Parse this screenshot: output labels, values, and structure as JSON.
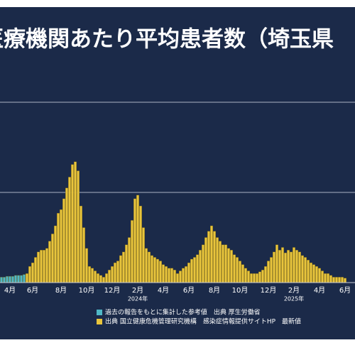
{
  "chart_data": {
    "type": "bar",
    "title": "医療機関あたり平均患者数（埼玉県",
    "categories": [
      null,
      null,
      null,
      "4月",
      null,
      null,
      null,
      null,
      null,
      null,
      null,
      "6月",
      null,
      null,
      null,
      null,
      null,
      null,
      null,
      null,
      null,
      "8月",
      null,
      null,
      null,
      null,
      null,
      null,
      null,
      null,
      "10月",
      null,
      null,
      null,
      null,
      null,
      null,
      null,
      null,
      "12月",
      null,
      null,
      null,
      null,
      null,
      null,
      null,
      null,
      "2月",
      null,
      null,
      null,
      null,
      null,
      null,
      null,
      null,
      "4月",
      null,
      null,
      null,
      null,
      null,
      null,
      null,
      null,
      "6月",
      null,
      null,
      null,
      null,
      null,
      null,
      null,
      null,
      "8月",
      null,
      null,
      null,
      null,
      null,
      null,
      null,
      null,
      "10月",
      null,
      null,
      null,
      null,
      null,
      null,
      null,
      null,
      null,
      "12月",
      null,
      null,
      null,
      null,
      null,
      null,
      null,
      null,
      "2月",
      null,
      null,
      null,
      null,
      null,
      null,
      null,
      null,
      "4月",
      null,
      null,
      null,
      null,
      null,
      null,
      null,
      null,
      "6月"
    ],
    "category_years": [
      null,
      null,
      null,
      null,
      null,
      null,
      null,
      null,
      null,
      null,
      null,
      null,
      null,
      null,
      null,
      null,
      null,
      null,
      null,
      null,
      null,
      null,
      null,
      null,
      null,
      null,
      null,
      null,
      null,
      null,
      null,
      null,
      null,
      null,
      null,
      null,
      null,
      null,
      null,
      null,
      null,
      null,
      null,
      null,
      null,
      null,
      null,
      null,
      "2024年",
      null,
      null,
      null,
      null,
      null,
      null,
      null,
      null,
      null,
      null,
      null,
      null,
      null,
      null,
      null,
      null,
      null,
      null,
      null,
      null,
      null,
      null,
      null,
      null,
      null,
      null,
      null,
      null,
      null,
      null,
      null,
      null,
      null,
      null,
      null,
      null,
      null,
      null,
      null,
      null,
      null,
      null,
      null,
      null,
      null,
      null,
      null,
      null,
      null,
      null,
      null,
      null,
      null,
      null,
      "2025年",
      null,
      null,
      null,
      null,
      null,
      null,
      null,
      null,
      null,
      null,
      null,
      null,
      null,
      null,
      null,
      null,
      null,
      null
    ],
    "series": [
      {
        "name": "過去の報告をもとに集計した参考値　出典 厚生労働省",
        "color": "#4fb8c6",
        "values": [
          0.6,
          0.6,
          0.7,
          0.7,
          0.7,
          0.8,
          0.8,
          0.8,
          0.9,
          null,
          null,
          null,
          null,
          null,
          null,
          null,
          null,
          null,
          null,
          null,
          null,
          null,
          null,
          null,
          null,
          null,
          null,
          null,
          null,
          null,
          null,
          null,
          null,
          null,
          null,
          null,
          null,
          null,
          null,
          null,
          null,
          null,
          null,
          null,
          null,
          null,
          null,
          null,
          null,
          null,
          null,
          null,
          null,
          null,
          null,
          null,
          null,
          null,
          null,
          null,
          null,
          null,
          null,
          null,
          null,
          null,
          null,
          null,
          null,
          null,
          null,
          null,
          null,
          null,
          null,
          null,
          null,
          null,
          null,
          null,
          null,
          null,
          null,
          null,
          null,
          null,
          null,
          null,
          null,
          null,
          null,
          null,
          null,
          null,
          null,
          null,
          null,
          null,
          null,
          null,
          null,
          null,
          null,
          null,
          null,
          null,
          null,
          null,
          null,
          null,
          null,
          null,
          null,
          null,
          null,
          null,
          null,
          null,
          null,
          null,
          null,
          null
        ]
      },
      {
        "name": "出典 国立健康危機管理研究機構　感染症情報提供サイトHP　最新値",
        "color": "#e9c53c",
        "values": [
          null,
          null,
          null,
          null,
          null,
          null,
          null,
          null,
          null,
          1.0,
          1.8,
          2.2,
          2.8,
          3.4,
          3.6,
          3.6,
          3.8,
          4.6,
          5.4,
          6.3,
          7.7,
          8.1,
          9.3,
          10.5,
          11.7,
          13.1,
          13.4,
          12.4,
          8.5,
          6.1,
          3.8,
          1.8,
          1.6,
          1.3,
          1.0,
          0.8,
          0.6,
          1.0,
          1.4,
          1.8,
          2.2,
          2.4,
          3.0,
          3.4,
          4.2,
          5.0,
          6.9,
          9.3,
          9.7,
          8.5,
          6.1,
          3.8,
          3.4,
          3.0,
          2.8,
          2.6,
          2.4,
          2.0,
          1.8,
          1.6,
          1.6,
          1.4,
          1.0,
          1.3,
          1.6,
          1.8,
          2.2,
          2.6,
          2.8,
          3.1,
          3.6,
          4.2,
          5.0,
          5.7,
          6.3,
          5.7,
          5.0,
          4.6,
          4.2,
          4.2,
          3.8,
          3.6,
          3.1,
          2.8,
          2.4,
          2.0,
          1.6,
          1.3,
          1.0,
          1.0,
          1.0,
          1.2,
          1.4,
          1.8,
          2.4,
          2.8,
          3.4,
          4.2,
          3.6,
          3.9,
          3.3,
          3.6,
          3.4,
          3.9,
          3.6,
          3.4,
          3.0,
          2.8,
          2.5,
          2.2,
          2.0,
          1.8,
          1.6,
          1.3,
          1.0,
          1.0,
          0.8,
          0.6,
          0.6,
          0.6,
          0.6,
          0.5
        ]
      }
    ],
    "ylim": [
      0,
      25
    ],
    "yticks": [
      10,
      20
    ],
    "grid": true
  }
}
